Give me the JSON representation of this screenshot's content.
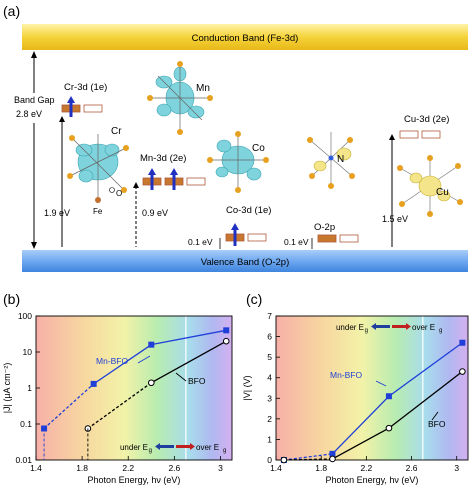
{
  "panel_a": {
    "label": "(a)",
    "conduction_band": "Conduction Band (Fe-3d)",
    "valence_band": "Valence Band (O-2p)",
    "band_gap_line1": "Band Gap",
    "band_gap_line2": "2.8 eV",
    "levels": {
      "cr": "Cr-3d (1e)",
      "mn": "Mn-3d (2e)",
      "co": "Co-3d (1e)",
      "o": "O-2p",
      "cu": "Cu-3d (2e)"
    },
    "energies": {
      "cr": "1.9 eV",
      "mn": "0.9 eV",
      "co": "0.1 eV",
      "o": "0.1 eV",
      "cu": "1.5 eV"
    },
    "atoms": {
      "cr": "Cr",
      "fe": "Fe",
      "o": "O",
      "mn": "Mn",
      "co": "Co",
      "n": "N",
      "cu": "Cu"
    }
  },
  "colors": {
    "conduction_band": "#f5d33a",
    "valence_band": "#6fa8f0",
    "level_filled": "#c8782e",
    "level_empty": "#ffffff",
    "level_border": "#b05a3a",
    "spin_arrow": "#2030c0",
    "orbital_lobe": "#7fd3dc",
    "oxygen_atom": "#e8a020",
    "mn_bfo_series": "#1f3fd8",
    "bfo_series": "#000000",
    "under_arrow": "#1f3f9f",
    "over_arrow": "#c02020"
  },
  "panel_b": {
    "label": "(b)",
    "under_label": "under E",
    "under_sub": "g",
    "over_label": "over E",
    "over_sub": "g"
  },
  "panel_c": {
    "label": "(c)",
    "under_label": "under E",
    "under_sub": "g",
    "over_label": "over E",
    "over_sub": "g"
  },
  "chart_data": [
    {
      "type": "line",
      "panel": "(b)",
      "ylabel": "|J| (μA cm⁻²)",
      "xlabel": "Photon Energy, hν (eV)",
      "yscale": "log",
      "xlim": [
        1.4,
        3.1
      ],
      "ylim": [
        0.01,
        100
      ],
      "xticks": [
        1.4,
        1.8,
        2.2,
        2.6,
        3
      ],
      "yticks": [
        0.01,
        0.1,
        1,
        10,
        100
      ],
      "series": [
        {
          "name": "Mn-BFO",
          "x": [
            1.47,
            1.9,
            2.4,
            3.05
          ],
          "y": [
            0.075,
            1.3,
            16,
            40
          ]
        },
        {
          "name": "BFO",
          "x": [
            1.85,
            2.4,
            3.05
          ],
          "y": [
            0.075,
            1.4,
            20
          ]
        }
      ]
    },
    {
      "type": "line",
      "panel": "(c)",
      "ylabel": "|V| (V)",
      "xlabel": "Photon Energy, hν (eV)",
      "xlim": [
        1.4,
        3.1
      ],
      "ylim": [
        0,
        7
      ],
      "xticks": [
        1.4,
        1.8,
        2.2,
        2.6,
        3
      ],
      "yticks": [
        0,
        1,
        2,
        3,
        4,
        5,
        6,
        7
      ],
      "series": [
        {
          "name": "Mn-BFO",
          "x": [
            1.47,
            1.9,
            2.4,
            3.05
          ],
          "y": [
            0.0,
            0.3,
            3.1,
            5.7
          ]
        },
        {
          "name": "BFO",
          "x": [
            1.47,
            1.9,
            2.4,
            3.05
          ],
          "y": [
            0.0,
            0.05,
            1.55,
            4.3
          ]
        }
      ]
    }
  ]
}
